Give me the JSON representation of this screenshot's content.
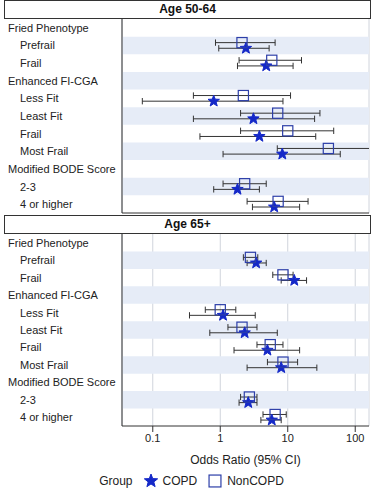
{
  "chart_data": [
    {
      "type": "scatter",
      "title": "Age 50-64",
      "log": "x",
      "grid": true,
      "tick_labels": "y",
      "xlim": [
        0.035,
        160
      ],
      "xticks": [
        0.1,
        1,
        10,
        100
      ],
      "categories": [
        "Fried Phenotype",
        "Prefrail",
        "Frail",
        "Enhanced FI-CGA",
        "Less Fit",
        "Least Fit",
        "Frail",
        "Most Frail",
        "Modified BODE Score",
        "2-3",
        "4 or higher"
      ],
      "series": [
        {
          "name": "COPD",
          "color": "#1428c8",
          "marker": "star",
          "values": [
            null,
            2.4,
            4.8,
            null,
            0.8,
            3.1,
            3.8,
            8.3,
            null,
            1.8,
            6.3
          ],
          "ci_low": [
            null,
            0.95,
            1.8,
            null,
            0.07,
            0.4,
            0.5,
            1.1,
            null,
            0.8,
            3.0
          ],
          "ci_high": [
            null,
            5.3,
            12,
            null,
            8.5,
            25,
            26,
            60,
            null,
            3.8,
            15
          ]
        },
        {
          "name": "NonCOPD",
          "color": "#2c3ea8",
          "marker": "square",
          "values": [
            null,
            2.1,
            5.8,
            null,
            2.2,
            7.1,
            10,
            40,
            null,
            2.3,
            7.2
          ],
          "ci_low": [
            null,
            0.85,
            1.9,
            null,
            0.4,
            2.0,
            2.0,
            7.0,
            null,
            1.1,
            2.5
          ],
          "ci_high": [
            null,
            6.5,
            16,
            null,
            11,
            30,
            48,
            220,
            null,
            4.8,
            20
          ]
        }
      ]
    },
    {
      "type": "scatter",
      "title": "Age 65+",
      "log": "x",
      "grid": true,
      "xlim": [
        0.035,
        160
      ],
      "xticks": [
        0.1,
        1,
        10,
        100
      ],
      "x_label": "Odds Ratio (95% CI)",
      "legend": "bottom",
      "legend_title": "Group",
      "categories": [
        "Fried Phenotype",
        "Prefrail",
        "Frail",
        "Enhanced FI-CGA",
        "Less Fit",
        "Least Fit",
        "Frail",
        "Most Frail",
        "Modified BODE Score",
        "2-3",
        "4 or higher"
      ],
      "series": [
        {
          "name": "COPD",
          "color": "#1428c8",
          "marker": "star",
          "values": [
            null,
            3.4,
            12.5,
            null,
            1.1,
            2.3,
            5.0,
            8.0,
            null,
            2.6,
            5.8
          ],
          "ci_low": [
            null,
            2.5,
            8.0,
            null,
            0.35,
            0.7,
            1.6,
            2.5,
            null,
            1.9,
            4.0
          ],
          "ci_high": [
            null,
            4.8,
            19,
            null,
            3.3,
            7.0,
            15,
            27,
            null,
            3.5,
            8.0
          ]
        },
        {
          "name": "NonCOPD",
          "color": "#2c3ea8",
          "marker": "square",
          "values": [
            null,
            2.8,
            8.5,
            null,
            1.0,
            2.1,
            5.5,
            8.5,
            null,
            2.7,
            6.5
          ],
          "ci_low": [
            null,
            2.2,
            6.0,
            null,
            0.6,
            1.3,
            3.5,
            5.0,
            null,
            2.0,
            4.3
          ],
          "ci_high": [
            null,
            3.6,
            12,
            null,
            1.7,
            3.5,
            8.5,
            14,
            null,
            3.5,
            9.5
          ]
        }
      ]
    }
  ]
}
